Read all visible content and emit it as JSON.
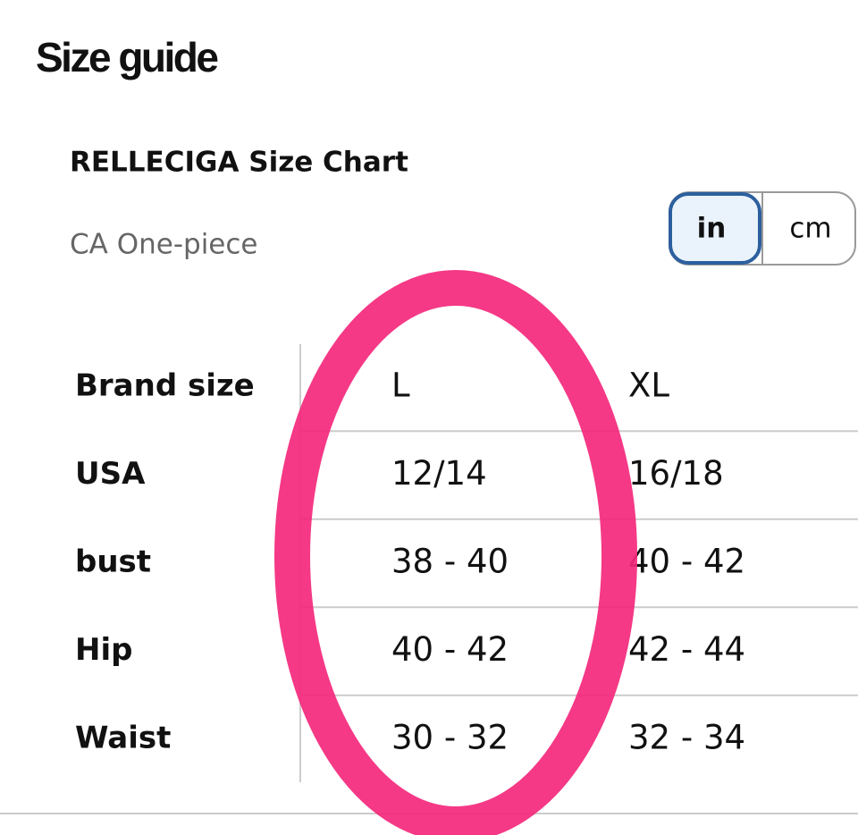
{
  "header": {
    "title": "Size guide"
  },
  "chart": {
    "title": "RELLECIGA Size Chart",
    "subtitle": "CA One-piece"
  },
  "unit_toggle": {
    "options": [
      "in",
      "cm"
    ],
    "selected": "in"
  },
  "table": {
    "rows": [
      [
        "Brand size",
        "L",
        "XL"
      ],
      [
        "USA",
        "12/14",
        "16/18"
      ],
      [
        "bust",
        "38 - 40",
        "40 - 42"
      ],
      [
        "Hip",
        "40 - 42",
        "42 - 44"
      ],
      [
        "Waist",
        "30 - 32",
        "32 - 34"
      ]
    ]
  }
}
